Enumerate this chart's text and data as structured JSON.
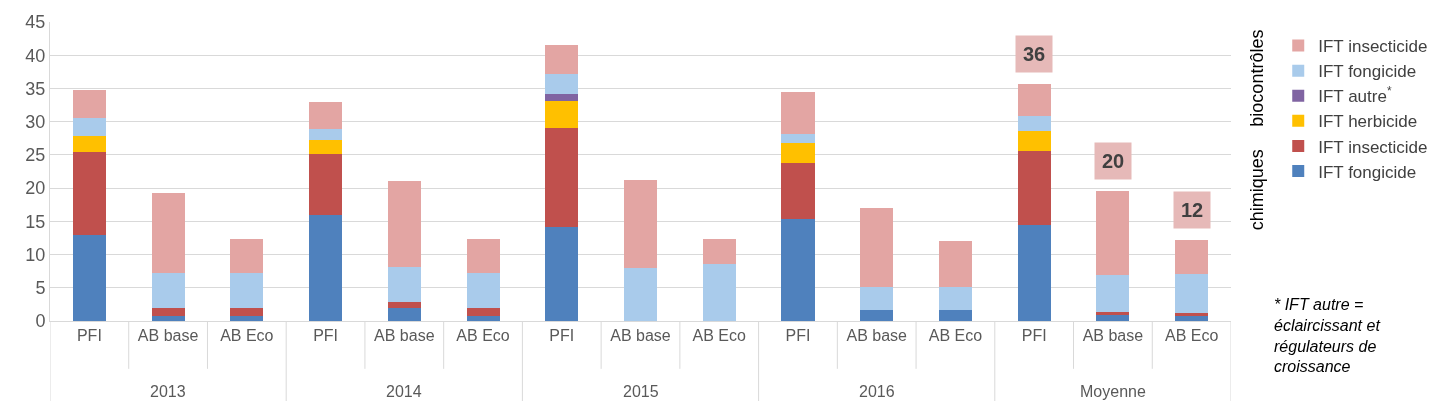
{
  "chart_data": {
    "type": "bar",
    "stacked": true,
    "categories": [
      "PFI",
      "AB base",
      "AB Eco",
      "PFI",
      "AB base",
      "AB Eco",
      "PFI",
      "AB base",
      "AB Eco",
      "PFI",
      "AB base",
      "AB Eco",
      "PFI",
      "AB base",
      "AB Eco"
    ],
    "series": [
      {
        "name": "IFT fongicide",
        "color": "#4f81bd",
        "values": [
          12.9,
          0.8,
          0.8,
          15.9,
          1.9,
          0.8,
          14.1,
          0,
          0,
          15.3,
          1.7,
          1.7,
          14.4,
          0.9,
          0.7
        ]
      },
      {
        "name": "IFT insecticide",
        "color": "#c0504d",
        "values": [
          12.6,
          1.2,
          1.2,
          9.3,
          1.0,
          1.2,
          15.0,
          0,
          0,
          8.5,
          0,
          0,
          11.2,
          0.5,
          0.5
        ]
      },
      {
        "name": "IFT herbicide",
        "color": "#ffc000",
        "values": [
          2.4,
          0,
          0,
          2.0,
          0,
          0,
          4.0,
          0,
          0,
          3.0,
          0,
          0,
          3.0,
          0,
          0
        ]
      },
      {
        "name": "IFT autre$^{*}$",
        "color": "#8064a2",
        "values": [
          0,
          0,
          0,
          0,
          0,
          0,
          1.0,
          0,
          0,
          0,
          0,
          0,
          null,
          0,
          0
        ]
      },
      {
        "name": "IFT fongicide",
        "color": "#a9cbeb",
        "values": [
          2.6,
          5.2,
          5.2,
          1.7,
          5.2,
          5.2,
          3.0,
          8.0,
          8.6,
          1.4,
          3.4,
          3.4,
          2.2,
          5.5,
          5.8
        ]
      },
      {
        "name": "IFT insecticide",
        "color": "#e3a5a3",
        "values": [
          4.3,
          12.1,
          5.1,
          4.1,
          12.9,
          5.1,
          4.4,
          13.2,
          3.8,
          6.3,
          11.9,
          6.9,
          4.9,
          12.6,
          5.2
        ]
      }
    ],
    "totals": [
      null,
      null,
      null,
      null,
      null,
      null,
      null,
      null,
      null,
      null,
      null,
      null,
      "36",
      "20",
      "12"
    ],
    "ylim": [
      0,
      45
    ],
    "yticks": [
      0,
      5,
      10,
      15,
      20,
      25,
      30,
      35,
      40,
      45
    ],
    "grid": "y",
    "legend": "right",
    "annotations": [
      "2013",
      "2014",
      "2015",
      "2016",
      "Moyenne",
      "biocontrôles",
      "chimiques",
      "* IFT autre = éclaircissant et régulateurs de croissance"
    ]
  }
}
